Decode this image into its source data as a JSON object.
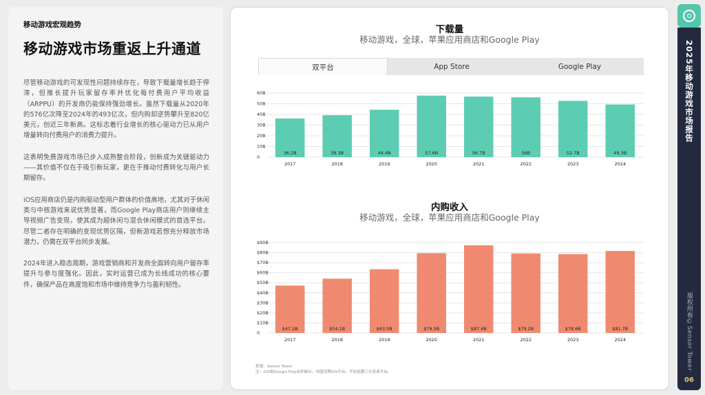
{
  "left": {
    "section_label": "移动游戏宏观趋势",
    "title": "移动游戏市场重返上升通道",
    "paragraphs": [
      "尽管移动游戏的可发现性问题持续存在，导致下载量增长趋于停滞，但推长提升玩家留存率并优化每付费用户平均收益（ARPPU）的开发商仍能保持强劲增长。虽然下载量从2020年的576亿次降至2024年的493亿次，但内购却逆势攀升至820亿美元，创近三年新高。这标志着行业增长的核心驱动力已从用户增量转向付费用户的消费力提升。",
      "这表明免费游戏市场已步入成熟整合阶段，创新成为关键驱动力——其价值不仅在于吸引新玩家，更在于推动付费转化与用户长期留存。",
      "iOS应用商店仍是内购驱动型用户群体的价值高地，尤其对于休闲类与中核游戏来说优势显著，而Google Play商店用户则继续主导视频广告变现，使其成为超休闲与混合休闲模式的首选平台。尽管二者存在明确的变现优势区隔，但新游戏若想充分释放市场潜力，仍需在双平台同步发展。",
      "2024年进入稳态周期，游戏营销商和开发商全面转向用户留存率提升与参与度强化。因此，实时运营已成为长线成功的核心要件，确保产品在高度饱和市场中维持竞争力与盈利韧性。"
    ]
  },
  "tabs": [
    "双平台",
    "App Store",
    "Google Play"
  ],
  "chart_data": [
    {
      "type": "bar",
      "title": "下载量",
      "subtitle": "移动游戏，全球，苹果应用商店和Google Play",
      "categories": [
        "2017",
        "2018",
        "2019",
        "2020",
        "2021",
        "2022",
        "2023",
        "2024"
      ],
      "values": [
        36.2,
        39.3,
        44.4,
        57.6,
        56.7,
        56,
        52.7,
        49.3
      ],
      "value_labels": [
        "36.2B",
        "39.3B",
        "44.4B",
        "57.6B",
        "56.7B",
        "56B",
        "52.7B",
        "49.3B"
      ],
      "y_ticks": [
        0,
        10,
        20,
        30,
        40,
        50,
        60
      ],
      "y_tick_labels": [
        "0",
        "10B",
        "20B",
        "30B",
        "40B",
        "50B",
        "60B"
      ],
      "ylim": [
        0,
        60
      ],
      "color": "#5ccdb2",
      "grid": true
    },
    {
      "type": "bar",
      "title": "内购收入",
      "subtitle": "移动游戏，全球，苹果应用商店和Google Play",
      "categories": [
        "2017",
        "2018",
        "2019",
        "2020",
        "2021",
        "2022",
        "2023",
        "2024"
      ],
      "values": [
        47.2,
        54.1,
        63.5,
        79.5,
        87.4,
        79.2,
        78.6,
        81.7
      ],
      "value_labels": [
        "$47.2B",
        "$54.1B",
        "$63.5B",
        "$79.5B",
        "$87.4B",
        "$79.2B",
        "$78.6B",
        "$81.7B"
      ],
      "y_ticks": [
        0,
        10,
        20,
        30,
        40,
        50,
        60,
        70,
        80,
        90
      ],
      "y_tick_labels": [
        "0",
        "$10B",
        "$20B",
        "$30B",
        "$40B",
        "$50B",
        "$60B",
        "$70B",
        "$80B",
        "$90B"
      ],
      "ylim": [
        0,
        90
      ],
      "color": "#ef8a70",
      "grid": true
    }
  ],
  "source": {
    "line1": "来源：Sensor Tower",
    "line2": "注：iOS和Google Play合并统计。中国仅限iOS平台。不包括第三方安卓平台。"
  },
  "sidebar": {
    "report_title": "2025年移动游戏市场报告",
    "copyright": "版权所有©Sensor Tower",
    "page_number": "06",
    "logo_icon": "sensor-tower-logo-icon"
  },
  "colors": {
    "sidebar": "#232a3f",
    "accent": "#55c5ac",
    "page_number": "#e2c27a"
  }
}
